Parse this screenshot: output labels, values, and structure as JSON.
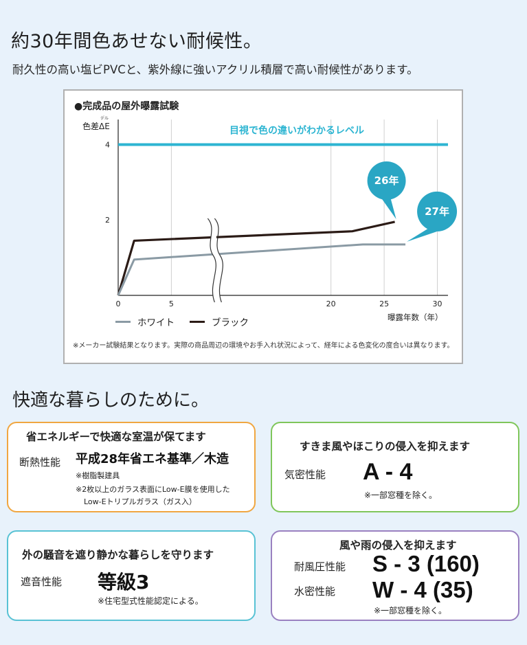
{
  "header": {
    "title": "約30年間色あせない耐候性。",
    "subtitle": "耐久性の高い塩ビPVCと、紫外線に強いアクリル積層で高い耐候性があります。"
  },
  "chart": {
    "title": "●完成品の屋外曝露試験",
    "y_axis_label": "色差ΔE",
    "y_axis_ruby": "デル",
    "reference_label": "目視で色の違いがわかるレベル",
    "x_unit_label": "曝露年数（年）",
    "legend_white": "ホワイト",
    "legend_black": "ブラック",
    "bubble_black": "26年",
    "bubble_white": "27年",
    "note": "※メーカー試験結果となります。実際の商品周辺の環境やお手入れ状況によって、経年による色変化の度合いは異なります。"
  },
  "chart_data": {
    "type": "line",
    "title": "●完成品の屋外曝露試験",
    "xlabel": "曝露年数（年）",
    "ylabel": "色差ΔE",
    "xlim": [
      0,
      31
    ],
    "ylim": [
      0,
      4.3
    ],
    "xticks": [
      0,
      5,
      20,
      25,
      30
    ],
    "yticks": [
      2,
      4
    ],
    "axis_break_near_x": 9,
    "grid": "vertical",
    "legend": "bottom-left",
    "reference_line": {
      "y": 4,
      "label": "目視で色の違いがわかるレベル",
      "color": "#2db5d2"
    },
    "series": [
      {
        "name": "ブラック",
        "color": "#2b1b16",
        "points": [
          [
            0,
            0
          ],
          [
            1.5,
            1.45
          ],
          [
            22,
            1.7
          ],
          [
            26,
            1.95
          ]
        ],
        "end_label": "26年"
      },
      {
        "name": "ホワイト",
        "color": "#8a9aa4",
        "points": [
          [
            0,
            0
          ],
          [
            1.5,
            0.95
          ],
          [
            23,
            1.35
          ],
          [
            27,
            1.35
          ]
        ],
        "end_label": "27年"
      }
    ]
  },
  "section2": {
    "title": "快適な暮らしのために。"
  },
  "cards": {
    "insulation": {
      "heading": "省エネルギーで快適な室温が保てます",
      "label": "断熱性能",
      "value": "平成28年省エネ基準／木造",
      "note1": "※樹脂製建具",
      "note2": "※2枚以上のガラス表面にLow-E膜を使用した",
      "note3": "Low-Eトリプルガラス（ガス入）",
      "border_color": "#f0a640"
    },
    "airtight": {
      "heading": "すきま風やほこりの侵入を抑えます",
      "label": "気密性能",
      "value": "A - 4",
      "note": "※一部窓種を除く。",
      "border_color": "#7fc65a"
    },
    "sound": {
      "heading": "外の騒音を遮り静かな暮らしを守ります",
      "label": "遮音性能",
      "value": "等級3",
      "note": "※住宅型式性能認定による。",
      "border_color": "#58c2d4"
    },
    "wind_water": {
      "heading": "風や雨の侵入を抑えます",
      "label1": "耐風圧性能",
      "value1": "S - 3 (160)",
      "label2": "水密性能",
      "value2": "W - 4 (35)",
      "note": "※一部窓種を除く。",
      "border_color": "#9a80c0"
    }
  }
}
